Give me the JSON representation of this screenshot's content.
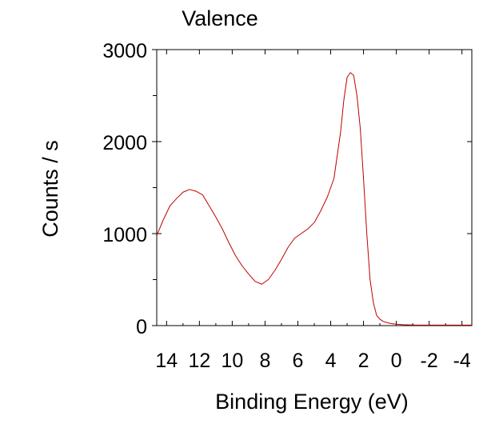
{
  "chart_data": {
    "type": "line",
    "title": "Valence",
    "xlabel": "Binding Energy  (eV)",
    "ylabel": "Counts / s",
    "xlim": [
      14.6,
      -4.6
    ],
    "x_reversed": true,
    "ylim": [
      0,
      3000
    ],
    "x_ticks": [
      "14",
      "12",
      "10",
      "8",
      "6",
      "4",
      "2",
      "0",
      "-2",
      "-4"
    ],
    "y_ticks": [
      "0",
      "1000",
      "2000",
      "3000"
    ],
    "grid": false,
    "legend": "none",
    "line_color": "#c00000",
    "series": [
      {
        "x": [
          14.6,
          14.2,
          13.8,
          13.4,
          13.0,
          12.6,
          12.2,
          11.8,
          11.4,
          11.0,
          10.6,
          10.2,
          9.8,
          9.4,
          9.0,
          8.6,
          8.2,
          7.8,
          7.4,
          7.0,
          6.6,
          6.2,
          5.8,
          5.4,
          5.0,
          4.6,
          4.2,
          3.8,
          3.6,
          3.4,
          3.2,
          3.0,
          2.8,
          2.6,
          2.4,
          2.2,
          2.0,
          1.8,
          1.6,
          1.4,
          1.2,
          1.0,
          0.8,
          0.6,
          0.4,
          0.2,
          0.0,
          -0.4,
          -0.8,
          -1.2,
          -2.0,
          -3.0,
          -4.0,
          -4.6
        ],
        "y": [
          980,
          1150,
          1300,
          1380,
          1450,
          1480,
          1460,
          1420,
          1300,
          1180,
          1050,
          900,
          760,
          650,
          560,
          480,
          450,
          500,
          600,
          720,
          850,
          950,
          1000,
          1050,
          1120,
          1250,
          1400,
          1600,
          1850,
          2100,
          2450,
          2700,
          2750,
          2720,
          2500,
          2150,
          1600,
          1000,
          500,
          250,
          110,
          70,
          45,
          35,
          25,
          20,
          15,
          10,
          8,
          5,
          5,
          5,
          5,
          5
        ]
      }
    ]
  }
}
